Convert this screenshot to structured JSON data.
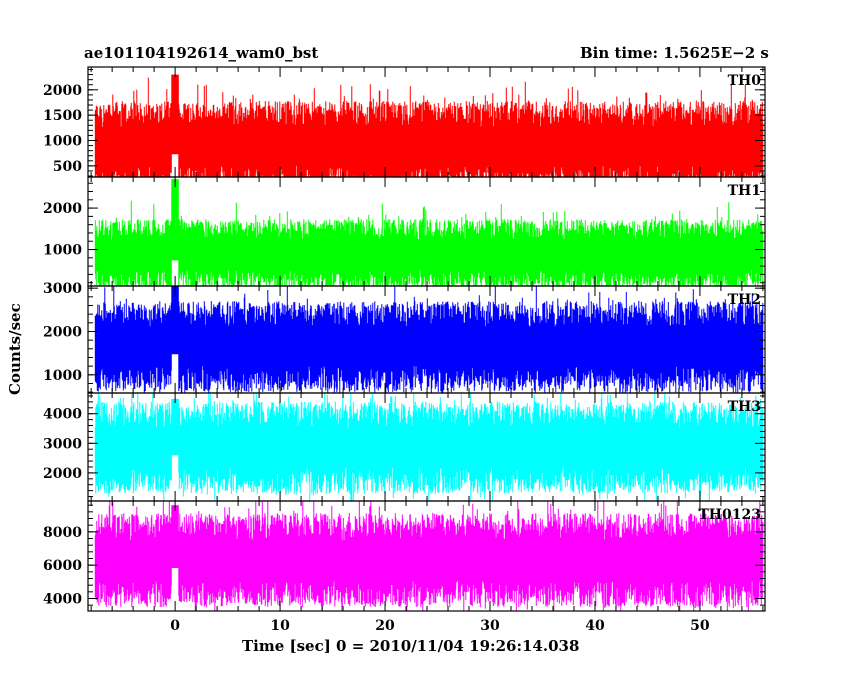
{
  "header": {
    "title": "ae101104192614_wam0_bst",
    "bin_time": "Bin time: 1.5625E−2 s"
  },
  "axes": {
    "xlabel": "Time [sec] 0 = 2010/11/04 19:26:14.038",
    "ylabel": "Counts/sec"
  },
  "chart_data": {
    "type": "line",
    "x": {
      "range": [
        -8.3,
        56.2
      ],
      "ticks": [
        0,
        10,
        20,
        30,
        40,
        50
      ],
      "bin_time_s": 0.015625,
      "ylim_all_panels_share_x": true
    },
    "panels": [
      {
        "name": "TH0",
        "color": "#ff0000",
        "ylim": [
          280,
          2450
        ],
        "ticks": [
          500,
          1000,
          1500,
          2000
        ],
        "mean": 880,
        "upper_envelope": 1750,
        "lower_envelope": 250,
        "spike_at_0": 2300
      },
      {
        "name": "TH1",
        "color": "#00ff00",
        "ylim": [
          120,
          2750
        ],
        "ticks": [
          1000,
          2000
        ],
        "mean": 880,
        "upper_envelope": 1700,
        "lower_envelope": 280,
        "spike_at_0": 2700
      },
      {
        "name": "TH2",
        "color": "#0000ff",
        "ylim": [
          580,
          3050
        ],
        "ticks": [
          1000,
          2000,
          3000
        ],
        "mean": 1650,
        "upper_envelope": 2600,
        "lower_envelope": 850,
        "spike_at_0": 3050
      },
      {
        "name": "TH3",
        "color": "#00ffff",
        "ylim": [
          1050,
          4700
        ],
        "ticks": [
          2000,
          3000,
          4000
        ],
        "mean": 2850,
        "upper_envelope": 4100,
        "lower_envelope": 1500,
        "spike_at_0": 4500
      },
      {
        "name": "TH0123",
        "color": "#ff00ff",
        "ylim": [
          3250,
          9850
        ],
        "ticks": [
          4000,
          6000,
          8000
        ],
        "mean": 6300,
        "upper_envelope": 8500,
        "lower_envelope": 3800,
        "spike_at_0": 9600
      }
    ]
  }
}
